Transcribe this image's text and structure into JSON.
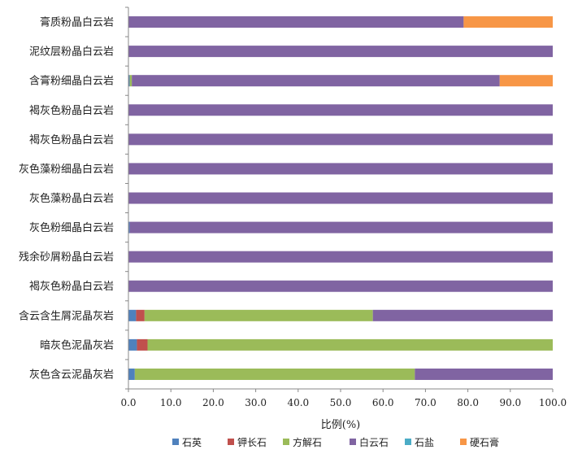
{
  "chart_data": {
    "type": "bar",
    "orientation": "horizontal",
    "stacked": true,
    "categories": [
      "膏质粉晶白云岩",
      "泥纹层粉晶白云岩",
      "含膏粉细晶白云岩",
      "褐灰色粉晶白云岩",
      "褐灰色粉晶白云岩",
      "灰色藻粉细晶白云岩",
      "灰色藻粉晶白云岩",
      "灰色粉细晶白云岩",
      "残余砂屑粉晶白云岩",
      "褐灰色粉晶白云岩",
      "含云含生屑泥晶灰岩",
      "暗灰色泥晶灰岩",
      "灰色含云泥晶灰岩"
    ],
    "series": [
      {
        "name": "石英",
        "color": "#4f81bd",
        "values": [
          0,
          0,
          0.3,
          0,
          0,
          0,
          0,
          0.3,
          0,
          0,
          1.8,
          2.0,
          1.5
        ]
      },
      {
        "name": "钾长石",
        "color": "#c0504d",
        "values": [
          0,
          0,
          0,
          0,
          0,
          0,
          0,
          0,
          0,
          0,
          2.0,
          2.5,
          0
        ]
      },
      {
        "name": "方解石",
        "color": "#9bbb59",
        "values": [
          0,
          0,
          0.5,
          0,
          0,
          0,
          0,
          0,
          0,
          0,
          53.8,
          95.5,
          66.0
        ]
      },
      {
        "name": "白云石",
        "color": "#8064a2",
        "values": [
          79.0,
          100,
          86.7,
          100,
          100,
          100,
          100,
          99.7,
          100,
          100,
          42.4,
          0,
          32.5
        ]
      },
      {
        "name": "石盐",
        "color": "#4bacc6",
        "values": [
          0,
          0,
          0,
          0,
          0,
          0,
          0,
          0,
          0,
          0,
          0,
          0,
          0
        ]
      },
      {
        "name": "硬石膏",
        "color": "#f79646",
        "values": [
          21.0,
          0,
          12.5,
          0,
          0,
          0,
          0,
          0,
          0,
          0,
          0,
          0,
          0
        ]
      }
    ],
    "xlabel": "比例(%)",
    "xlim": [
      0,
      100
    ],
    "xticks": [
      "0.0",
      "10.0",
      "20.0",
      "30.0",
      "40.0",
      "50.0",
      "60.0",
      "70.0",
      "80.0",
      "90.0",
      "100.0"
    ],
    "grid": false,
    "legend_position": "bottom"
  }
}
